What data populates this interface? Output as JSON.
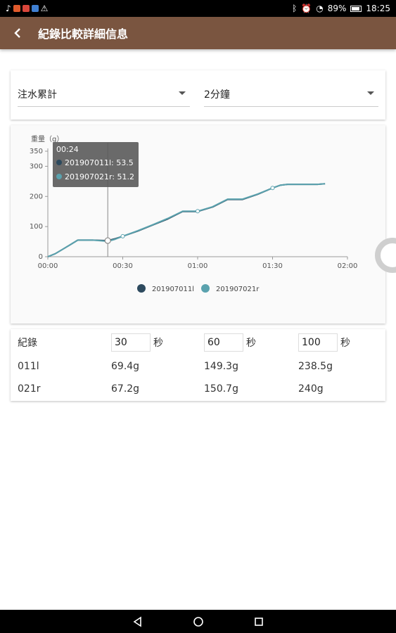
{
  "status_bar": {
    "battery": "89%",
    "time": "18:25"
  },
  "header": {
    "title": "紀錄比較詳細信息",
    "back_icon": "chevron-left-icon"
  },
  "filters": {
    "measure": "注水累計",
    "duration": "2分鐘"
  },
  "chart_data": {
    "type": "line",
    "ylabel": "重量（g）",
    "yticks": [
      "0",
      "100",
      "200",
      "300",
      "350"
    ],
    "ylim": [
      0,
      350
    ],
    "xticks": [
      "00:00",
      "00:30",
      "01:00",
      "01:30",
      "02:00"
    ],
    "xlim_seconds": [
      0,
      120
    ],
    "grid": false,
    "legend_position": "bottom",
    "series": [
      {
        "name": "201907011l",
        "color": "#2d4a5e",
        "x": [
          0,
          3,
          6,
          9,
          12,
          18,
          24,
          27,
          30,
          36,
          42,
          48,
          54,
          60,
          66,
          72,
          78,
          84,
          90,
          93,
          96,
          102,
          108,
          111
        ],
        "y": [
          0,
          10,
          25,
          40,
          55,
          55,
          53.5,
          60,
          68,
          85,
          105,
          125,
          150,
          150,
          165,
          190,
          190,
          207,
          228,
          237,
          240,
          240,
          240,
          242
        ]
      },
      {
        "name": "201907021r",
        "color": "#5aa2ae",
        "x": [
          0,
          3,
          6,
          9,
          12,
          18,
          24,
          27,
          30,
          36,
          42,
          48,
          54,
          60,
          66,
          72,
          78,
          84,
          90,
          93,
          96,
          102,
          108,
          111
        ],
        "y": [
          0,
          10,
          25,
          40,
          55,
          55,
          51.2,
          58,
          68,
          86,
          106,
          127,
          151,
          151,
          166,
          191,
          191,
          208,
          228,
          237,
          240,
          240,
          240,
          242
        ]
      }
    ],
    "tooltip": {
      "time": "00:24",
      "lines": [
        "201907011l: 53.5",
        "201907021r: 51.2"
      ]
    }
  },
  "table": {
    "header": {
      "label": "紀錄",
      "unit": "秒",
      "seconds": [
        "30",
        "60",
        "100"
      ]
    },
    "rows": [
      {
        "name": "011l",
        "values": [
          "69.4g",
          "149.3g",
          "238.5g"
        ]
      },
      {
        "name": "021r",
        "values": [
          "67.2g",
          "150.7g",
          "240g"
        ]
      }
    ]
  },
  "nav": {
    "back_icon": "triangle-back-icon",
    "home_icon": "circle-home-icon",
    "recents_icon": "square-recents-icon"
  }
}
